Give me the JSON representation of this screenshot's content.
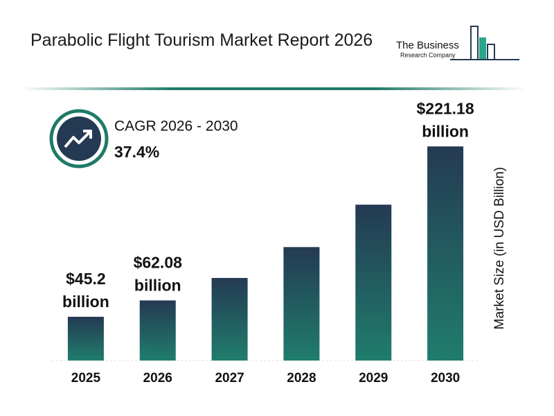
{
  "chart_data": {
    "type": "bar",
    "title": "Parabolic Flight Tourism Market Report 2026",
    "logo": [
      "The Business",
      "Research Company"
    ],
    "cagr_label": "CAGR 2026 - 2030",
    "cagr_value": "37.4%",
    "y_label": "Market Size (in USD Billion)",
    "categories": [
      "2025",
      "2026",
      "2027",
      "2028",
      "2029",
      "2030"
    ],
    "values": [
      45.2,
      62.08,
      85.3,
      117.2,
      161.0,
      221.18
    ],
    "value_labels": [
      [
        "$45.2",
        "billion"
      ],
      [
        "$62.08",
        "billion"
      ],
      null,
      null,
      null,
      [
        "$221.18",
        "billion"
      ]
    ],
    "color": "#243a53",
    "color_bottom": "#207d6d",
    "ylim": [
      0,
      265
    ]
  }
}
